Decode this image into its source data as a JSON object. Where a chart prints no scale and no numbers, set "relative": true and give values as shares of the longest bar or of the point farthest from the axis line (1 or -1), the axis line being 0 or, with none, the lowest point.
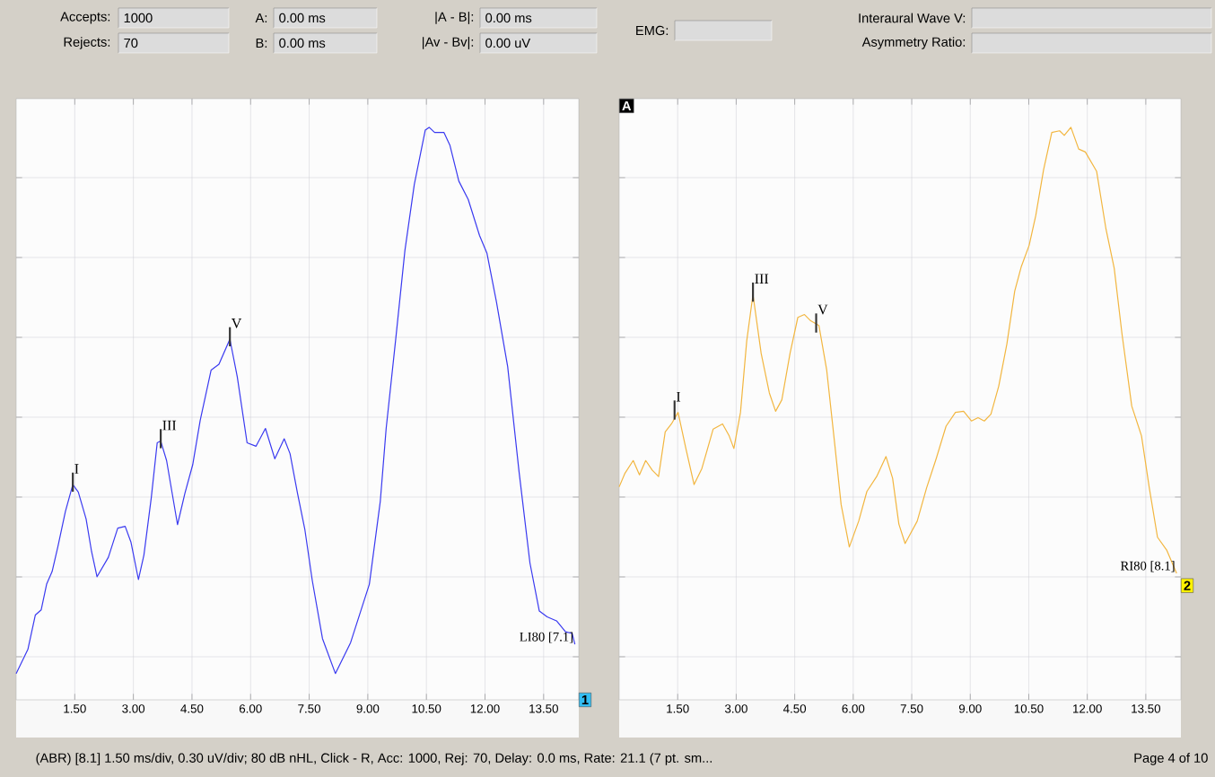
{
  "chart_data": [
    {
      "type": "other",
      "annotations": [
        "Accepts:",
        "1000",
        "Rejects:",
        "70",
        "A:",
        "0.00 ms",
        "B:",
        "0.00 ms",
        "|A - B|:",
        "0.00 ms",
        "|Av - Bv|:",
        "0.00 uV",
        "EMG:",
        "Interaural Wave V:",
        "Asymmetry Ratio:"
      ]
    },
    {
      "type": "line",
      "relative": true,
      "grid": true,
      "legend": false,
      "xlim": [
        0,
        14.4
      ],
      "xticks": [
        {
          "value": 1.5,
          "label": "1.50"
        },
        {
          "value": 3,
          "label": "3.00"
        },
        {
          "value": 4.5,
          "label": "4.50"
        },
        {
          "value": 6,
          "label": "6.00"
        },
        {
          "value": 7.5,
          "label": "7.50"
        },
        {
          "value": 9,
          "label": "9.00"
        },
        {
          "value": 10.5,
          "label": "10.50"
        },
        {
          "value": 12,
          "label": "12.00"
        },
        {
          "value": 13.5,
          "label": "13.50"
        }
      ],
      "series": [
        {
          "name": "LI80 [7.1]",
          "color": "#3a3af0",
          "x": [
            0.0,
            0.3,
            0.49,
            0.64,
            0.78,
            0.92,
            1.07,
            1.26,
            1.45,
            1.59,
            1.79,
            1.93,
            2.07,
            2.36,
            2.6,
            2.79,
            2.94,
            3.13,
            3.27,
            3.46,
            3.61,
            3.7,
            3.85,
            4.13,
            4.32,
            4.52,
            4.71,
            4.99,
            5.19,
            5.33,
            5.47,
            5.66,
            5.91,
            6.14,
            6.38,
            6.62,
            6.86,
            7.01,
            7.2,
            7.39,
            7.58,
            7.84,
            8.17,
            8.56,
            9.04,
            9.32,
            9.47,
            9.71,
            9.95,
            10.19,
            10.47,
            10.57,
            10.71,
            10.95,
            11.1,
            11.33,
            11.57,
            11.86,
            12.05,
            12.29,
            12.58,
            12.87,
            13.15,
            13.39,
            13.59,
            13.83,
            14.06,
            14.23,
            14.3
          ],
          "values": [
            0.046,
            0.088,
            0.148,
            0.157,
            0.202,
            0.224,
            0.268,
            0.329,
            0.376,
            0.363,
            0.316,
            0.259,
            0.215,
            0.249,
            0.3,
            0.303,
            0.275,
            0.21,
            0.253,
            0.354,
            0.449,
            0.452,
            0.418,
            0.306,
            0.361,
            0.411,
            0.488,
            0.576,
            0.586,
            0.608,
            0.63,
            0.564,
            0.449,
            0.443,
            0.474,
            0.421,
            0.456,
            0.43,
            0.361,
            0.297,
            0.208,
            0.107,
            0.046,
            0.1,
            0.202,
            0.347,
            0.474,
            0.627,
            0.785,
            0.9,
            0.995,
            1.0,
            0.991,
            0.991,
            0.969,
            0.906,
            0.874,
            0.811,
            0.78,
            0.696,
            0.582,
            0.399,
            0.239,
            0.155,
            0.145,
            0.138,
            0.119,
            0.116,
            0.097
          ]
        }
      ],
      "annotations": [
        {
          "text": "I",
          "x": 1.45,
          "y": 0.376
        },
        {
          "text": "III",
          "x": 3.7,
          "y": 0.452
        },
        {
          "text": "V",
          "x": 5.47,
          "y": 0.63
        },
        "1"
      ]
    },
    {
      "type": "line",
      "relative": true,
      "grid": true,
      "legend": false,
      "xlim": [
        0,
        14.4
      ],
      "xticks": [
        {
          "value": 1.5,
          "label": "1.50"
        },
        {
          "value": 3,
          "label": "3.00"
        },
        {
          "value": 4.5,
          "label": "4.50"
        },
        {
          "value": 6,
          "label": "6.00"
        },
        {
          "value": 7.5,
          "label": "7.50"
        },
        {
          "value": 9,
          "label": "9.00"
        },
        {
          "value": 10.5,
          "label": "10.50"
        },
        {
          "value": 12,
          "label": "12.00"
        },
        {
          "value": 13.5,
          "label": "13.50"
        }
      ],
      "series": [
        {
          "name": "RI80 [8.1]",
          "color": "#f2b640",
          "x": [
            0.0,
            0.15,
            0.36,
            0.52,
            0.68,
            0.85,
            1.01,
            1.18,
            1.34,
            1.51,
            1.71,
            1.92,
            2.12,
            2.41,
            2.65,
            2.82,
            2.94,
            3.11,
            3.27,
            3.43,
            3.64,
            3.85,
            4.01,
            4.17,
            4.38,
            4.58,
            4.75,
            4.91,
            5.12,
            5.32,
            5.53,
            5.69,
            5.9,
            6.14,
            6.35,
            6.6,
            6.84,
            7.01,
            7.17,
            7.33,
            7.64,
            7.88,
            8.13,
            8.38,
            8.62,
            8.83,
            9.03,
            9.2,
            9.36,
            9.53,
            9.73,
            9.94,
            10.14,
            10.31,
            10.51,
            10.68,
            10.88,
            11.09,
            11.29,
            11.41,
            11.58,
            11.78,
            11.95,
            12.24,
            12.48,
            12.69,
            12.89,
            13.14,
            13.39,
            13.59,
            13.8,
            14.04,
            14.29
          ],
          "values": [
            0.372,
            0.396,
            0.418,
            0.393,
            0.418,
            0.401,
            0.39,
            0.468,
            0.482,
            0.502,
            0.439,
            0.376,
            0.404,
            0.473,
            0.482,
            0.461,
            0.439,
            0.502,
            0.627,
            0.708,
            0.605,
            0.536,
            0.504,
            0.524,
            0.605,
            0.668,
            0.673,
            0.662,
            0.654,
            0.576,
            0.444,
            0.341,
            0.267,
            0.312,
            0.364,
            0.39,
            0.425,
            0.387,
            0.307,
            0.273,
            0.312,
            0.37,
            0.422,
            0.478,
            0.502,
            0.504,
            0.487,
            0.493,
            0.487,
            0.499,
            0.548,
            0.622,
            0.714,
            0.757,
            0.794,
            0.846,
            0.926,
            0.991,
            0.994,
            0.986,
            1.0,
            0.962,
            0.957,
            0.923,
            0.822,
            0.754,
            0.639,
            0.513,
            0.461,
            0.37,
            0.284,
            0.261,
            0.221
          ]
        }
      ],
      "annotations": [
        {
          "text": "I",
          "x": 1.42,
          "y": 0.502
        },
        {
          "text": "III",
          "x": 3.43,
          "y": 0.708
        },
        {
          "text": "V",
          "x": 5.05,
          "y": 0.654
        },
        "A",
        "2"
      ]
    },
    {
      "type": "other",
      "annotations": [
        "(ABR) [8.1]  1.50 ms/div,  0.30 uV/div;  80 dB nHL,  Click - R,  Acc: 1000,  Rej: 70,  Delay: 0.0 ms,  Rate: 21.1 (7 pt. sm...",
        "Page 4 of 10"
      ]
    }
  ]
}
